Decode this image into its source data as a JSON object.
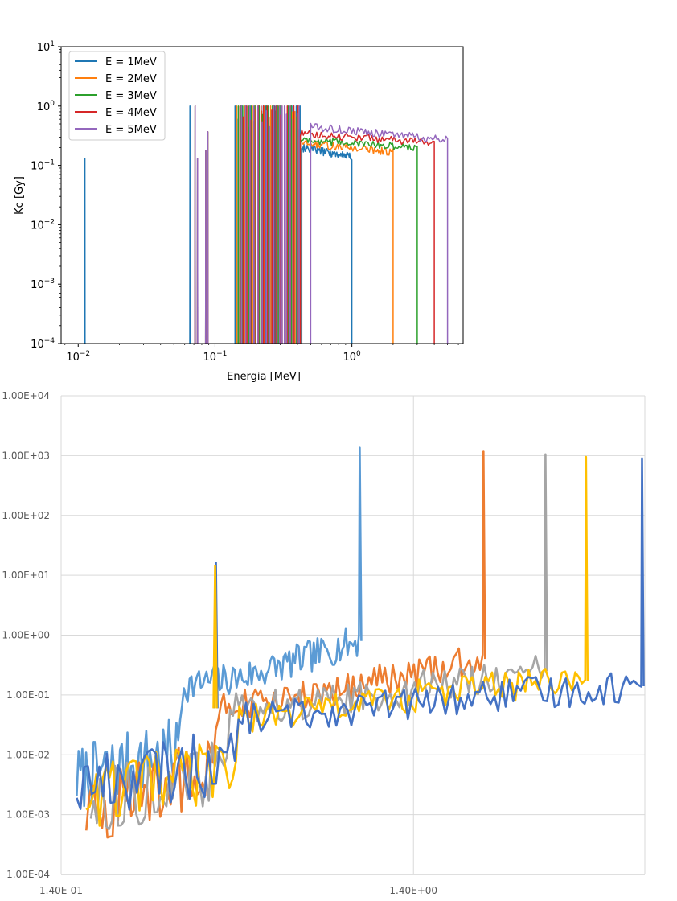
{
  "chart_data": [
    {
      "type": "line",
      "title": "",
      "xlabel": "Energia [MeV]",
      "ylabel": "Kc [Gy]",
      "xscale": "log",
      "yscale": "log",
      "xlim": [
        0.0075,
        6.5
      ],
      "ylim": [
        0.0001,
        10
      ],
      "xticks": [
        {
          "value": 0.01,
          "base": "10",
          "exp": "−2"
        },
        {
          "value": 0.1,
          "base": "10",
          "exp": "−1"
        },
        {
          "value": 1,
          "base": "10",
          "exp": "0"
        }
      ],
      "yticks": [
        {
          "value": 0.0001,
          "base": "10",
          "exp": "−4"
        },
        {
          "value": 0.001,
          "base": "10",
          "exp": "−3"
        },
        {
          "value": 0.01,
          "base": "10",
          "exp": "−2"
        },
        {
          "value": 0.1,
          "base": "10",
          "exp": "−1"
        },
        {
          "value": 1,
          "base": "10",
          "exp": "0"
        },
        {
          "value": 10,
          "base": "10",
          "exp": "1"
        }
      ],
      "grid": false,
      "legend_position": "top-left",
      "series": [
        {
          "name": "E = 1MeV",
          "color": "#1f77b4",
          "max_energy": 1.0,
          "plateau": [
            0.2,
            0.14
          ]
        },
        {
          "name": "E = 2MeV",
          "color": "#ff7f0e",
          "max_energy": 2.0,
          "plateau": [
            0.24,
            0.17
          ]
        },
        {
          "name": "E = 3MeV",
          "color": "#2ca02c",
          "max_energy": 3.0,
          "plateau": [
            0.27,
            0.2
          ]
        },
        {
          "name": "E = 4MeV",
          "color": "#d62728",
          "max_energy": 4.0,
          "plateau": [
            0.35,
            0.24
          ]
        },
        {
          "name": "E = 5MeV",
          "color": "#9467bd",
          "max_energy": 5.0,
          "plateau": [
            0.45,
            0.27
          ]
        }
      ]
    },
    {
      "type": "line",
      "title": "",
      "xlabel": "",
      "ylabel": "",
      "xscale": "log",
      "yscale": "log",
      "xlim": [
        0.14,
        6.35
      ],
      "ylim": [
        0.0001,
        10000
      ],
      "xticks": [
        {
          "value": 0.14,
          "label": "1.40E-01"
        },
        {
          "value": 1.4,
          "label": "1.40E+00"
        }
      ],
      "yticks": [
        {
          "value": 0.0001,
          "label": "1.00E-04"
        },
        {
          "value": 0.001,
          "label": "1.00E-03"
        },
        {
          "value": 0.01,
          "label": "1.00E-02"
        },
        {
          "value": 0.1,
          "label": "1.00E-01"
        },
        {
          "value": 1,
          "label": "1.00E+00"
        },
        {
          "value": 10,
          "label": "1.00E+01"
        },
        {
          "value": 100,
          "label": "1.00E+02"
        },
        {
          "value": 1000,
          "label": "1.00E+03"
        },
        {
          "value": 10000,
          "label": "1.00E+04"
        }
      ],
      "grid": true,
      "legend_position": "none",
      "series": [
        {
          "color": "#5b9bd5",
          "x_start": 0.155,
          "x_end": 0.98,
          "peak": 1350,
          "knee_x": 0.3,
          "points": [
            [
              0.155,
              0.004
            ],
            [
              0.3,
              0.012
            ],
            [
              0.31,
              0.14
            ],
            [
              0.46,
              0.2
            ],
            [
              0.6,
              0.32
            ],
            [
              0.98,
              0.8
            ]
          ]
        },
        {
          "color": "#ed7d31",
          "x_start": 0.165,
          "x_end": 2.2,
          "peak": 1200,
          "knee_x": 0.37,
          "points": [
            [
              0.165,
              0.001
            ],
            [
              0.37,
              0.006
            ],
            [
              0.4,
              0.06
            ],
            [
              0.6,
              0.08
            ],
            [
              1.0,
              0.15
            ],
            [
              2.2,
              0.4
            ]
          ]
        },
        {
          "color": "#a5a5a5",
          "x_start": 0.17,
          "x_end": 3.3,
          "peak": 1050,
          "knee_x": 0.4,
          "points": [
            [
              0.17,
              0.0015
            ],
            [
              0.4,
              0.005
            ],
            [
              0.43,
              0.06
            ],
            [
              0.9,
              0.08
            ],
            [
              1.6,
              0.15
            ],
            [
              3.3,
              0.25
            ]
          ]
        },
        {
          "color": "#ffc000",
          "x_start": 0.165,
          "x_end": 4.3,
          "peak": 950,
          "knee_x": 0.43,
          "points": [
            [
              0.165,
              0.002
            ],
            [
              0.43,
              0.006
            ],
            [
              0.45,
              0.04
            ],
            [
              1.0,
              0.07
            ],
            [
              2.0,
              0.13
            ],
            [
              4.3,
              0.17
            ]
          ]
        },
        {
          "color": "#4472c4",
          "x_start": 0.155,
          "x_end": 6.2,
          "peak": 900,
          "knee_x": 0.43,
          "points": [
            [
              0.155,
              0.003
            ],
            [
              0.43,
              0.008
            ],
            [
              0.45,
              0.04
            ],
            [
              1.0,
              0.06
            ],
            [
              2.5,
              0.1
            ],
            [
              6.2,
              0.14
            ]
          ]
        }
      ],
      "side_peaks": [
        {
          "x": 0.385,
          "value": 17,
          "color": "#4472c4"
        },
        {
          "x": 0.383,
          "value": 15,
          "color": "#ffc000"
        }
      ]
    }
  ]
}
